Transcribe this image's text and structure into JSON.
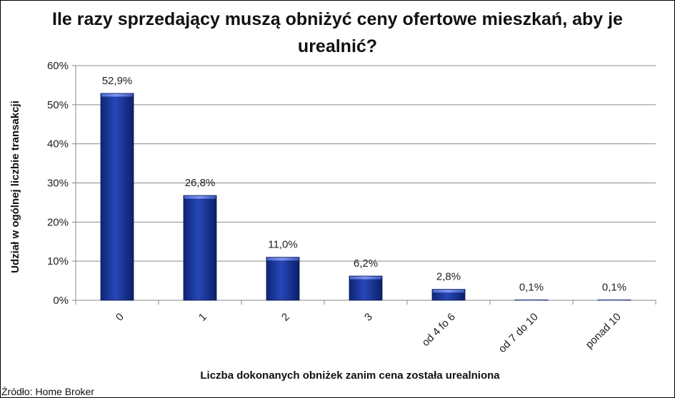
{
  "chart_data": {
    "type": "bar",
    "title": "Ile razy sprzedający muszą obniżyć ceny ofertowe mieszkań, aby je urealnić?",
    "xlabel": "Liczba dokonanych obniżek zanim cena została urealniona",
    "ylabel": "Udział w ogólnej liczbie transakcji",
    "categories": [
      "0",
      "1",
      "2",
      "3",
      "od 4 fo 6",
      "od 7 do 10",
      "ponad 10"
    ],
    "values": [
      52.9,
      26.8,
      11.0,
      6.2,
      2.8,
      0.1,
      0.1
    ],
    "value_labels": [
      "52,9%",
      "26,8%",
      "11,0%",
      "6,2%",
      "2,8%",
      "0,1%",
      "0,1%"
    ],
    "ylim": [
      0,
      60
    ],
    "yticks": [
      0,
      10,
      20,
      30,
      40,
      50,
      60
    ],
    "ytick_labels": [
      "0%",
      "10%",
      "20%",
      "30%",
      "40%",
      "50%",
      "60%"
    ],
    "grid": true,
    "bar_color": "#1a3a9c"
  },
  "source": "Źródło: Home Broker"
}
